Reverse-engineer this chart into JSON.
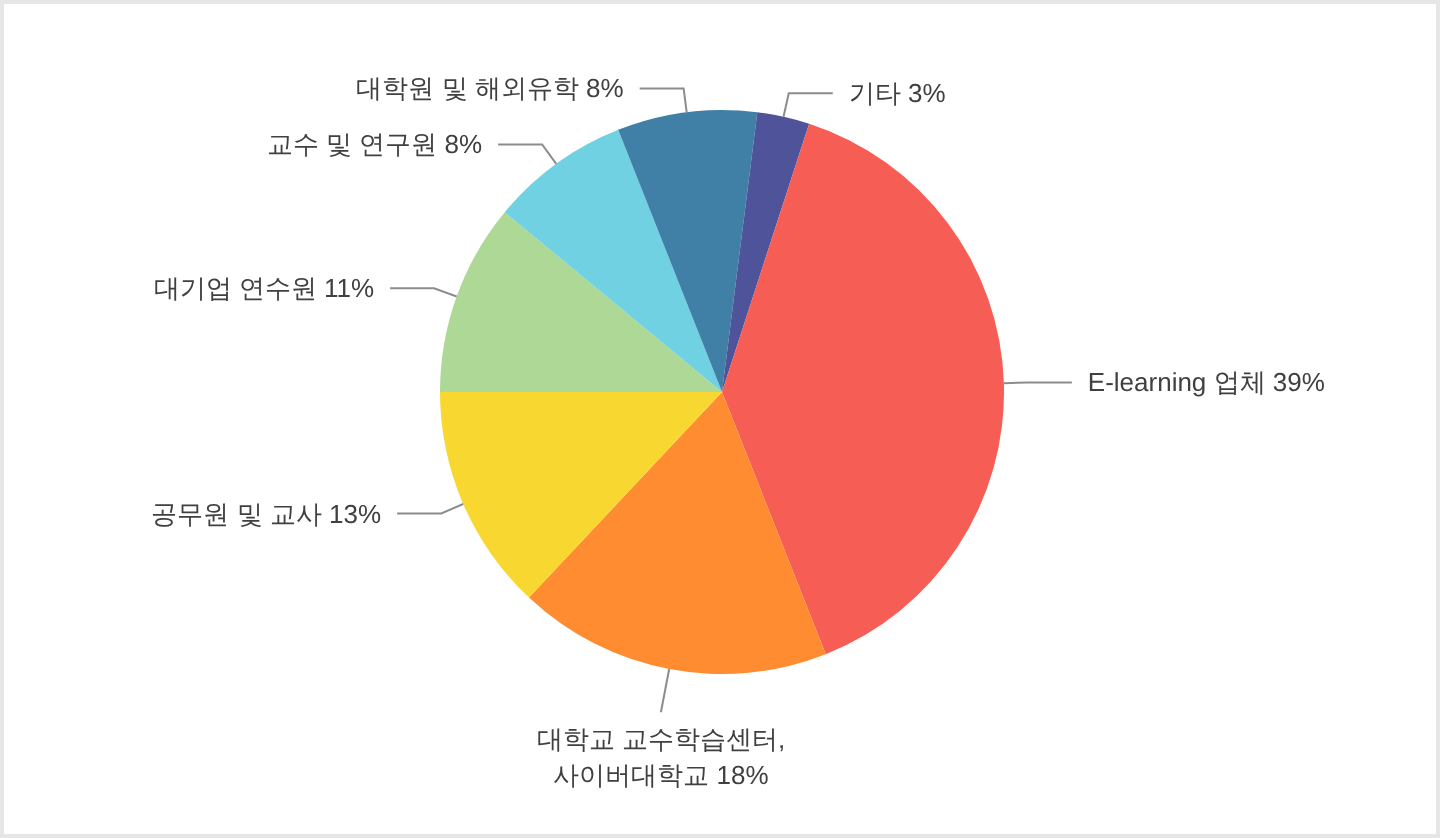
{
  "chart_data": {
    "type": "pie",
    "categories": [
      "대기업 연수원",
      "교수 및 연구원",
      "대학원 및 해외유학",
      "기타",
      "E-learning 업체",
      "대학교 교수학습센터, 사이버대학교",
      "공무원 및 교사"
    ],
    "values": [
      11,
      8,
      8,
      3,
      39,
      18,
      13
    ],
    "value_labels": [
      "11%",
      "8%",
      "8%",
      "3%",
      "39%",
      "18%",
      "13%"
    ],
    "colors": [
      "#add895",
      "#6fd1e2",
      "#4080a6",
      "#4f549a",
      "#f55d55",
      "#ff8c30",
      "#f9d731"
    ]
  }
}
